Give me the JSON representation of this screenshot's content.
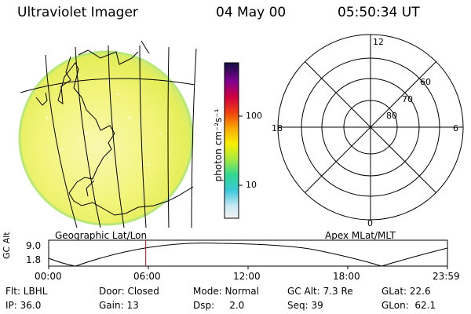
{
  "header": {
    "instrument": "Ultraviolet Imager",
    "date": "04 May 00",
    "time": "05:50:34 UT"
  },
  "colorbar": {
    "unit_label": "photon cm⁻²s⁻¹",
    "ticks": [
      "100",
      "10"
    ]
  },
  "polar_plot": {
    "mlt_labels": [
      "12",
      "18",
      "6",
      "0"
    ],
    "mlat_labels": [
      "60",
      "70",
      "80"
    ]
  },
  "panel_labels": {
    "left": "Geographic Lat/Lon",
    "right": "Apex MLat/MLT"
  },
  "altitude_plot": {
    "ylabel": "GC Alt",
    "yticks": [
      "9.0",
      "1.8"
    ],
    "xticks": [
      "00:00",
      "06:00",
      "12:00",
      "18:00",
      "23:59"
    ],
    "current_time_fraction": 0.2434
  },
  "info": {
    "filter": "Flt: LBHL",
    "door": "Door: Closed",
    "mode": "Mode: Normal",
    "gc_alt": "GC Alt: 7.3 Re",
    "glat": "GLat: 22.6",
    "ip": "IP: 36.0",
    "gain": "Gain: 13",
    "dsp": "Dsp:     2.0",
    "seq": "Seq: 39",
    "glon": "GLon:  62.1"
  },
  "colors": {
    "image_fill": "#ecf060",
    "image_highlight": "#f8f8b0",
    "image_edge": "#b8e878",
    "marker": "#dd0000"
  }
}
